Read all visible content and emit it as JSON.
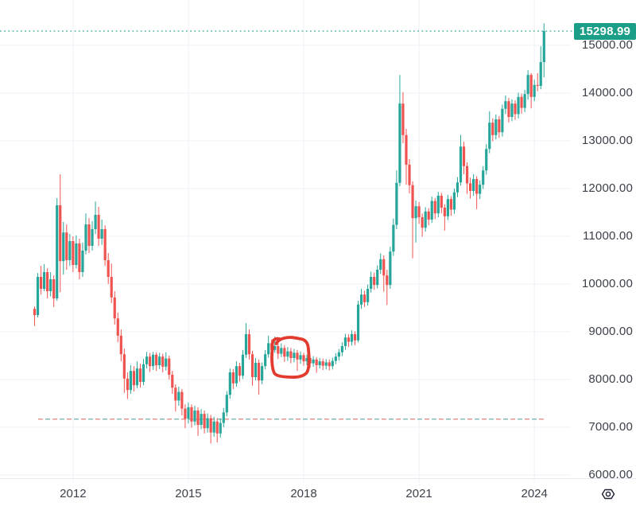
{
  "chart": {
    "colors": {
      "up": "#26a69a",
      "down": "#ef5350",
      "grid": "#eef1f7",
      "separator": "#e7eaf0",
      "accent": "#1b9e87",
      "annotation": "#e23b30",
      "axis_text": "#3c404a",
      "badge_text": "#ffffff",
      "icon": "#1c2030",
      "support_red": "#e88d87",
      "support_teal": "#7ab8b0"
    }
  },
  "chart_data": {
    "type": "candlestick",
    "title": "",
    "xlabel": "",
    "ylabel": "",
    "timeframe": "monthly",
    "grid": true,
    "legend": false,
    "ylim": [
      6000,
      15500
    ],
    "y_axis": {
      "min": 6000,
      "max": 15000,
      "tick_step": 1000
    },
    "y_ticks": [
      "15000.00",
      "14000.00",
      "13000.00",
      "12000.00",
      "11000.00",
      "10000.00",
      "9000.00",
      "8000.00",
      "7000.00",
      "6000.00"
    ],
    "x_ticks": [
      {
        "label": "2012",
        "month_index": 12
      },
      {
        "label": "2015",
        "month_index": 48
      },
      {
        "label": "2018",
        "month_index": 84
      },
      {
        "label": "2021",
        "month_index": 120
      },
      {
        "label": "2024",
        "month_index": 156
      }
    ],
    "last_price": 15298.99,
    "price_line": {
      "value": 15298.99,
      "label": "15298.99",
      "style": "dotted"
    },
    "support_line": {
      "value": 7170,
      "style": "dashed-red-teal"
    },
    "annotation": {
      "type": "hand-drawn-circle",
      "month_start": 74.2,
      "month_end": 85.6,
      "price_top": 8900,
      "price_bottom": 8085
    },
    "candles_format": [
      "month",
      "open",
      "high",
      "low",
      "close"
    ],
    "candles": [
      [
        "2011-01",
        9480,
        9530,
        9120,
        9350
      ],
      [
        "2011-02",
        9350,
        10230,
        9300,
        10150
      ],
      [
        "2011-03",
        10150,
        10380,
        9780,
        9900
      ],
      [
        "2011-04",
        9900,
        10420,
        9850,
        10250
      ],
      [
        "2011-05",
        10250,
        10330,
        9700,
        9850
      ],
      [
        "2011-06",
        9850,
        10250,
        9740,
        10100
      ],
      [
        "2011-07",
        10100,
        10180,
        9520,
        9700
      ],
      [
        "2011-08",
        9700,
        11800,
        9650,
        11650
      ],
      [
        "2011-09",
        11650,
        12300,
        9830,
        10480
      ],
      [
        "2011-10",
        10480,
        11300,
        10200,
        11080
      ],
      [
        "2011-11",
        11080,
        11250,
        10300,
        10500
      ],
      [
        "2011-12",
        10500,
        11050,
        10380,
        10900
      ],
      [
        "2012-01",
        10900,
        11000,
        10250,
        10400
      ],
      [
        "2012-02",
        10400,
        11020,
        10330,
        10850
      ],
      [
        "2012-03",
        10850,
        10950,
        10100,
        10250
      ],
      [
        "2012-04",
        10250,
        10870,
        10150,
        10700
      ],
      [
        "2012-05",
        10700,
        11480,
        10620,
        11250
      ],
      [
        "2012-06",
        11250,
        11380,
        10650,
        10800
      ],
      [
        "2012-07",
        10800,
        11320,
        10700,
        11150
      ],
      [
        "2012-08",
        11150,
        11730,
        11050,
        11450
      ],
      [
        "2012-09",
        11450,
        11620,
        10800,
        10950
      ],
      [
        "2012-10",
        10950,
        11350,
        10820,
        11150
      ],
      [
        "2012-11",
        11150,
        11230,
        10380,
        10500
      ],
      [
        "2012-12",
        10500,
        10650,
        10000,
        10150
      ],
      [
        "2013-01",
        10150,
        10430,
        9600,
        9720
      ],
      [
        "2013-02",
        9720,
        9850,
        9150,
        9280
      ],
      [
        "2013-03",
        9280,
        9400,
        8780,
        8920
      ],
      [
        "2013-04",
        8920,
        9050,
        8380,
        8530
      ],
      [
        "2013-05",
        8530,
        8650,
        7720,
        8020
      ],
      [
        "2013-06",
        8020,
        8150,
        7590,
        7780
      ],
      [
        "2013-07",
        7780,
        8300,
        7700,
        8180
      ],
      [
        "2013-08",
        8180,
        8280,
        7750,
        7880
      ],
      [
        "2013-09",
        7880,
        8380,
        7820,
        8230
      ],
      [
        "2013-10",
        8230,
        8330,
        7830,
        7950
      ],
      [
        "2013-11",
        7950,
        8430,
        7880,
        8320
      ],
      [
        "2013-12",
        8320,
        8580,
        8230,
        8480
      ],
      [
        "2014-01",
        8480,
        8560,
        8160,
        8280
      ],
      [
        "2014-02",
        8280,
        8580,
        8200,
        8520
      ],
      [
        "2014-03",
        8520,
        8570,
        8180,
        8300
      ],
      [
        "2014-04",
        8300,
        8560,
        8220,
        8480
      ],
      [
        "2014-05",
        8480,
        8540,
        8150,
        8270
      ],
      [
        "2014-06",
        8270,
        8570,
        8190,
        8440
      ],
      [
        "2014-07",
        8440,
        8500,
        8000,
        8100
      ],
      [
        "2014-08",
        8100,
        8180,
        7700,
        7830
      ],
      [
        "2014-09",
        7830,
        7900,
        7330,
        7560
      ],
      [
        "2014-10",
        7560,
        7850,
        7450,
        7740
      ],
      [
        "2014-11",
        7740,
        7800,
        7250,
        7390
      ],
      [
        "2014-12",
        7390,
        7480,
        6980,
        7180
      ],
      [
        "2015-01",
        7180,
        7520,
        7080,
        7420
      ],
      [
        "2015-02",
        7420,
        7480,
        6990,
        7120
      ],
      [
        "2015-03",
        7120,
        7450,
        7040,
        7350
      ],
      [
        "2015-04",
        7350,
        7420,
        6820,
        7050
      ],
      [
        "2015-05",
        7050,
        7380,
        6960,
        7280
      ],
      [
        "2015-06",
        7280,
        7350,
        6870,
        6980
      ],
      [
        "2015-07",
        6980,
        7290,
        6890,
        7190
      ],
      [
        "2015-08",
        7190,
        7260,
        6660,
        6890
      ],
      [
        "2015-09",
        6890,
        7220,
        6800,
        7120
      ],
      [
        "2015-10",
        7120,
        7190,
        6680,
        6870
      ],
      [
        "2015-11",
        6870,
        7180,
        6780,
        7090
      ],
      [
        "2015-12",
        7090,
        7400,
        7000,
        7310
      ],
      [
        "2016-01",
        7310,
        7760,
        7230,
        7680
      ],
      [
        "2016-02",
        7680,
        8230,
        7600,
        8150
      ],
      [
        "2016-03",
        8150,
        8220,
        7800,
        7920
      ],
      [
        "2016-04",
        7920,
        8380,
        7850,
        8280
      ],
      [
        "2016-05",
        8280,
        8350,
        7960,
        8080
      ],
      [
        "2016-06",
        8080,
        8620,
        8010,
        8520
      ],
      [
        "2016-07",
        8520,
        9180,
        8450,
        8950
      ],
      [
        "2016-08",
        8950,
        9050,
        8420,
        8530
      ],
      [
        "2016-09",
        8530,
        8600,
        7870,
        8050
      ],
      [
        "2016-10",
        8050,
        8450,
        7980,
        8350
      ],
      [
        "2016-11",
        8350,
        8420,
        7680,
        7980
      ],
      [
        "2016-12",
        7980,
        8360,
        7900,
        8280
      ],
      [
        "2017-01",
        8280,
        8620,
        8210,
        8530
      ],
      [
        "2017-02",
        8530,
        8920,
        8460,
        8760
      ],
      [
        "2017-03",
        8760,
        8840,
        8520,
        8620
      ],
      [
        "2017-04",
        8620,
        8900,
        8560,
        8700
      ],
      [
        "2017-05",
        8700,
        8780,
        8430,
        8540
      ],
      [
        "2017-06",
        8540,
        8760,
        8470,
        8660
      ],
      [
        "2017-07",
        8660,
        8720,
        8370,
        8480
      ],
      [
        "2017-08",
        8480,
        8680,
        8390,
        8590
      ],
      [
        "2017-09",
        8590,
        8660,
        8340,
        8450
      ],
      [
        "2017-10",
        8450,
        8640,
        8360,
        8560
      ],
      [
        "2017-11",
        8560,
        8620,
        8180,
        8420
      ],
      [
        "2017-12",
        8420,
        8590,
        8330,
        8510
      ],
      [
        "2018-01",
        8510,
        8560,
        8290,
        8380
      ],
      [
        "2018-02",
        8380,
        8520,
        8300,
        8450
      ],
      [
        "2018-03",
        8450,
        8500,
        8250,
        8340
      ],
      [
        "2018-04",
        8340,
        8490,
        8270,
        8420
      ],
      [
        "2018-05",
        8420,
        8470,
        8140,
        8300
      ],
      [
        "2018-06",
        8300,
        8450,
        8230,
        8380
      ],
      [
        "2018-07",
        8380,
        8440,
        8200,
        8290
      ],
      [
        "2018-08",
        8290,
        8430,
        8210,
        8360
      ],
      [
        "2018-09",
        8360,
        8420,
        8190,
        8280
      ],
      [
        "2018-10",
        8280,
        8460,
        8210,
        8390
      ],
      [
        "2018-11",
        8390,
        8550,
        8320,
        8480
      ],
      [
        "2018-12",
        8480,
        8640,
        8400,
        8570
      ],
      [
        "2019-01",
        8570,
        8780,
        8490,
        8700
      ],
      [
        "2019-02",
        8700,
        8960,
        8620,
        8880
      ],
      [
        "2019-03",
        8880,
        8950,
        8680,
        8790
      ],
      [
        "2019-04",
        8790,
        9030,
        8710,
        8950
      ],
      [
        "2019-05",
        8950,
        9010,
        8720,
        8820
      ],
      [
        "2019-06",
        8820,
        9650,
        8780,
        9570
      ],
      [
        "2019-07",
        9570,
        9900,
        9480,
        9780
      ],
      [
        "2019-08",
        9780,
        9860,
        9520,
        9620
      ],
      [
        "2019-09",
        9620,
        9990,
        9550,
        9900
      ],
      [
        "2019-10",
        9900,
        10260,
        9820,
        10150
      ],
      [
        "2019-11",
        10150,
        10240,
        9880,
        9980
      ],
      [
        "2019-12",
        9980,
        10390,
        9910,
        10300
      ],
      [
        "2020-01",
        10300,
        10640,
        10210,
        10520
      ],
      [
        "2020-02",
        10520,
        10600,
        9840,
        10180
      ],
      [
        "2020-03",
        10180,
        10300,
        9560,
        9980
      ],
      [
        "2020-04",
        9980,
        10780,
        9900,
        10680
      ],
      [
        "2020-05",
        10680,
        11370,
        10590,
        11240
      ],
      [
        "2020-06",
        11240,
        12380,
        11150,
        12120
      ],
      [
        "2020-07",
        12120,
        14380,
        12050,
        13780
      ],
      [
        "2020-08",
        13780,
        14020,
        12950,
        13120
      ],
      [
        "2020-09",
        13120,
        13250,
        12080,
        12500
      ],
      [
        "2020-10",
        12500,
        12620,
        11900,
        12070
      ],
      [
        "2020-11",
        12070,
        12150,
        10540,
        11380
      ],
      [
        "2020-12",
        11380,
        11750,
        10870,
        11630
      ],
      [
        "2021-01",
        11630,
        11720,
        11260,
        11400
      ],
      [
        "2021-02",
        11400,
        11480,
        10990,
        11180
      ],
      [
        "2021-03",
        11180,
        11610,
        11100,
        11520
      ],
      [
        "2021-04",
        11520,
        11590,
        11230,
        11350
      ],
      [
        "2021-05",
        11350,
        11830,
        11280,
        11740
      ],
      [
        "2021-06",
        11740,
        11800,
        11360,
        11480
      ],
      [
        "2021-07",
        11480,
        11930,
        11400,
        11850
      ],
      [
        "2021-08",
        11850,
        11910,
        11480,
        11600
      ],
      [
        "2021-09",
        11600,
        11670,
        11120,
        11420
      ],
      [
        "2021-10",
        11420,
        11870,
        11340,
        11780
      ],
      [
        "2021-11",
        11780,
        11840,
        11430,
        11560
      ],
      [
        "2021-12",
        11560,
        12000,
        11470,
        11920
      ],
      [
        "2022-01",
        11920,
        12240,
        11820,
        12130
      ],
      [
        "2022-02",
        12130,
        13120,
        12060,
        12880
      ],
      [
        "2022-03",
        12880,
        12980,
        12300,
        12470
      ],
      [
        "2022-04",
        12470,
        12550,
        11890,
        12110
      ],
      [
        "2022-05",
        12110,
        12230,
        11790,
        11950
      ],
      [
        "2022-06",
        11950,
        12300,
        11850,
        12200
      ],
      [
        "2022-07",
        12200,
        12260,
        11570,
        11890
      ],
      [
        "2022-08",
        11890,
        12170,
        11780,
        12080
      ],
      [
        "2022-09",
        12080,
        12470,
        11990,
        12380
      ],
      [
        "2022-10",
        12380,
        12930,
        12290,
        12830
      ],
      [
        "2022-11",
        12830,
        13620,
        12740,
        13380
      ],
      [
        "2022-12",
        13380,
        13470,
        12990,
        13120
      ],
      [
        "2023-01",
        13120,
        13550,
        13030,
        13450
      ],
      [
        "2023-02",
        13450,
        13520,
        13060,
        13180
      ],
      [
        "2023-03",
        13180,
        13760,
        13090,
        13670
      ],
      [
        "2023-04",
        13670,
        13950,
        13560,
        13830
      ],
      [
        "2023-05",
        13830,
        13900,
        13380,
        13500
      ],
      [
        "2023-06",
        13500,
        13870,
        13410,
        13780
      ],
      [
        "2023-07",
        13780,
        13850,
        13440,
        13560
      ],
      [
        "2023-08",
        13560,
        14010,
        13470,
        13920
      ],
      [
        "2023-09",
        13920,
        13990,
        13570,
        13690
      ],
      [
        "2023-10",
        13690,
        14070,
        13600,
        13980
      ],
      [
        "2023-11",
        13980,
        14480,
        13860,
        14380
      ],
      [
        "2023-12",
        14380,
        14420,
        13680,
        13920
      ],
      [
        "2024-01",
        13920,
        14280,
        13830,
        14170
      ],
      [
        "2024-02",
        14170,
        14420,
        14040,
        14150
      ],
      [
        "2024-03",
        14150,
        14980,
        14080,
        14650
      ],
      [
        "2024-04",
        14650,
        15460,
        14330,
        15298.99
      ]
    ]
  }
}
